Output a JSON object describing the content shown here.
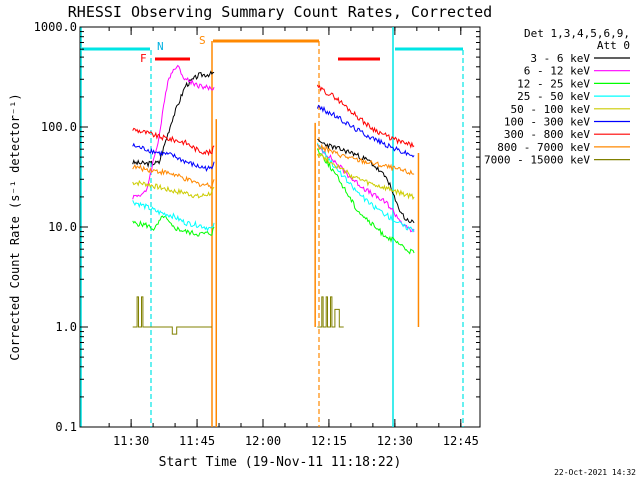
{
  "chart_data": {
    "type": "line",
    "title": "RHESSI Observing Summary Count Rates, Corrected",
    "xlabel": "Start Time (19-Nov-11 11:18:22)",
    "ylabel": "Corrected Count Rate (s⁻¹ detector⁻¹)",
    "yscale": "log",
    "ylim": [
      0.1,
      1000
    ],
    "xlim_minutes_after_start": [
      0,
      91
    ],
    "ytick_labels": [
      "0.1",
      "1.0",
      "10.0",
      "100.0",
      "1000.0"
    ],
    "xtick_labels": [
      "11:30",
      "11:45",
      "12:00",
      "12:15",
      "12:30",
      "12:45"
    ],
    "xtick_minutes": [
      11.63,
      26.63,
      41.63,
      56.63,
      71.63,
      86.63
    ],
    "legend_header": [
      "Det 1,3,4,5,6,9,",
      "Att 0"
    ],
    "legend_position": "right",
    "footer_date": "22-Oct-2021 14:32",
    "flag_labels": {
      "F": "F",
      "N": "N",
      "S": "S"
    },
    "series": [
      {
        "name": "3 - 6 keV",
        "color": "#000000",
        "seg1": [
          [
            12,
            44
          ],
          [
            15,
            43
          ],
          [
            18,
            44
          ],
          [
            21,
            120
          ],
          [
            24,
            260
          ],
          [
            27,
            330
          ],
          [
            30,
            340
          ],
          [
            30.5,
            350
          ]
        ],
        "seg2": [
          [
            54,
            72
          ],
          [
            58,
            62
          ],
          [
            62,
            55
          ],
          [
            66,
            45
          ],
          [
            70,
            30
          ],
          [
            72,
            17
          ],
          [
            74,
            12
          ],
          [
            76,
            11
          ]
        ]
      },
      {
        "name": "6 - 12 keV",
        "color": "#ff00ff",
        "seg1": [
          [
            12,
            20
          ],
          [
            15,
            22
          ],
          [
            18,
            80
          ],
          [
            20,
            300
          ],
          [
            22,
            420
          ],
          [
            24,
            300
          ],
          [
            27,
            260
          ],
          [
            30,
            240
          ],
          [
            30.5,
            250
          ]
        ],
        "seg2": [
          [
            54,
            65
          ],
          [
            58,
            45
          ],
          [
            62,
            30
          ],
          [
            66,
            22
          ],
          [
            70,
            17
          ],
          [
            72,
            13
          ],
          [
            74,
            10
          ],
          [
            76,
            9
          ]
        ]
      },
      {
        "name": "12 - 25 keV",
        "color": "#00ff00",
        "seg1": [
          [
            12,
            11
          ],
          [
            15,
            10.5
          ],
          [
            17,
            9.5
          ],
          [
            19,
            13
          ],
          [
            21,
            10
          ],
          [
            24,
            9
          ],
          [
            27,
            8.5
          ],
          [
            30,
            8.7
          ],
          [
            30.5,
            10
          ]
        ],
        "seg2": [
          [
            54,
            60
          ],
          [
            57,
            40
          ],
          [
            60,
            25
          ],
          [
            63,
            15
          ],
          [
            66,
            11
          ],
          [
            69,
            8.5
          ],
          [
            72,
            7
          ],
          [
            74,
            6
          ],
          [
            76,
            5.5
          ]
        ]
      },
      {
        "name": "25 - 50 keV",
        "color": "#00ffff",
        "seg1": [
          [
            12,
            18
          ],
          [
            15,
            16
          ],
          [
            18,
            14
          ],
          [
            21,
            13
          ],
          [
            24,
            11
          ],
          [
            27,
            10.5
          ],
          [
            30,
            9.5
          ],
          [
            30.5,
            11
          ]
        ],
        "seg2": [
          [
            54,
            70
          ],
          [
            58,
            40
          ],
          [
            62,
            25
          ],
          [
            66,
            17
          ],
          [
            70,
            13
          ],
          [
            74,
            10
          ],
          [
            76,
            9.5
          ]
        ]
      },
      {
        "name": "50 - 100 keV",
        "color": "#cccc00",
        "seg1": [
          [
            12,
            28
          ],
          [
            15,
            27
          ],
          [
            18,
            25
          ],
          [
            21,
            23
          ],
          [
            24,
            22
          ],
          [
            27,
            20
          ],
          [
            30,
            22
          ],
          [
            30.5,
            25
          ]
        ],
        "seg2": [
          [
            54,
            55
          ],
          [
            58,
            42
          ],
          [
            62,
            32
          ],
          [
            66,
            27
          ],
          [
            70,
            24
          ],
          [
            74,
            21
          ],
          [
            76,
            20
          ]
        ]
      },
      {
        "name": "100 - 300 keV",
        "color": "#0000ff",
        "seg1": [
          [
            12,
            65
          ],
          [
            15,
            60
          ],
          [
            18,
            55
          ],
          [
            21,
            52
          ],
          [
            24,
            45
          ],
          [
            27,
            40
          ],
          [
            30,
            38
          ],
          [
            30.5,
            45
          ]
        ],
        "seg2": [
          [
            54,
            160
          ],
          [
            58,
            130
          ],
          [
            62,
            100
          ],
          [
            66,
            80
          ],
          [
            70,
            65
          ],
          [
            74,
            55
          ],
          [
            76,
            52
          ]
        ]
      },
      {
        "name": "300 - 800 keV",
        "color": "#ff0000",
        "seg1": [
          [
            12,
            95
          ],
          [
            15,
            88
          ],
          [
            18,
            80
          ],
          [
            21,
            75
          ],
          [
            24,
            70
          ],
          [
            27,
            58
          ],
          [
            30,
            55
          ],
          [
            30.5,
            65
          ]
        ],
        "seg2": [
          [
            54,
            250
          ],
          [
            58,
            200
          ],
          [
            62,
            140
          ],
          [
            66,
            100
          ],
          [
            70,
            80
          ],
          [
            74,
            68
          ],
          [
            76,
            65
          ]
        ]
      },
      {
        "name": "800 - 7000 keV",
        "color": "#ff8800",
        "seg1": [
          [
            12,
            40
          ],
          [
            15,
            38
          ],
          [
            18,
            36
          ],
          [
            21,
            34
          ],
          [
            24,
            30
          ],
          [
            27,
            27
          ],
          [
            30,
            26
          ],
          [
            30.5,
            30
          ]
        ],
        "seg2": [
          [
            54,
            65
          ],
          [
            58,
            55
          ],
          [
            62,
            48
          ],
          [
            66,
            44
          ],
          [
            70,
            40
          ],
          [
            74,
            36
          ],
          [
            76,
            34
          ]
        ]
      },
      {
        "name": "7000 - 15000 keV",
        "color": "#808000",
        "seg1": [
          [
            12,
            1
          ],
          [
            13,
            2
          ],
          [
            13.3,
            1
          ],
          [
            14,
            2
          ],
          [
            14.3,
            1
          ],
          [
            15,
            1
          ],
          [
            17,
            1
          ],
          [
            19,
            1
          ],
          [
            21,
            0.85
          ],
          [
            22,
            1
          ],
          [
            24,
            1
          ],
          [
            26,
            1
          ],
          [
            28,
            1
          ],
          [
            30,
            1
          ]
        ],
        "seg2": [
          [
            54,
            1
          ],
          [
            55,
            2
          ],
          [
            55.3,
            1
          ],
          [
            56,
            2
          ],
          [
            56.3,
            1
          ],
          [
            57,
            2
          ],
          [
            57.3,
            1
          ],
          [
            58,
            1.5
          ],
          [
            59,
            1
          ],
          [
            60,
            1
          ]
        ]
      }
    ],
    "spikes": [
      {
        "x": 31,
        "y_top": 120,
        "y_bottom": 0.1,
        "color": "#ff8800"
      },
      {
        "x": 53.5,
        "y_top": 110,
        "y_bottom": 1.0,
        "color": "#ff8800"
      },
      {
        "x": 77,
        "y_top": 55,
        "y_bottom": 1.0,
        "color": "#ff8800"
      }
    ]
  }
}
